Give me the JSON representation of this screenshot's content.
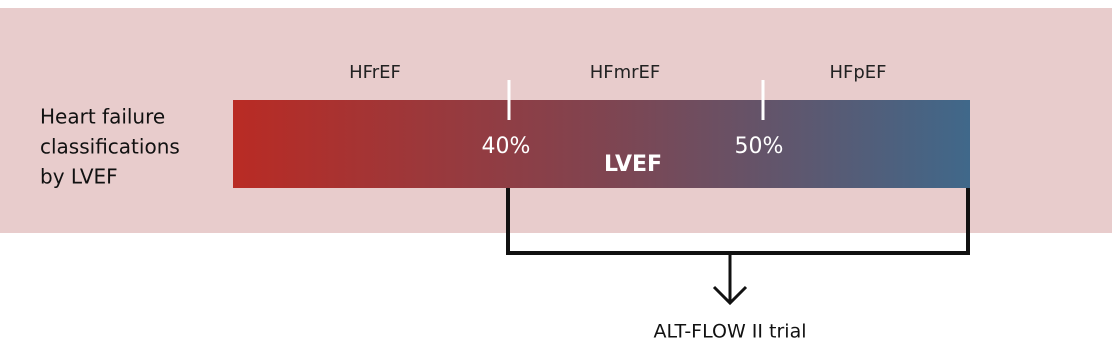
{
  "panel": {
    "label_lines": [
      "Heart failure",
      "classifications",
      "by LVEF"
    ]
  },
  "bar": {
    "segments": [
      "HFrEF",
      "HFmrEF",
      "HFpEF"
    ],
    "cutoffs": [
      "40%",
      "50%"
    ],
    "axis_label": "LVEF"
  },
  "trial": {
    "label": "ALT-FLOW II trial"
  }
}
